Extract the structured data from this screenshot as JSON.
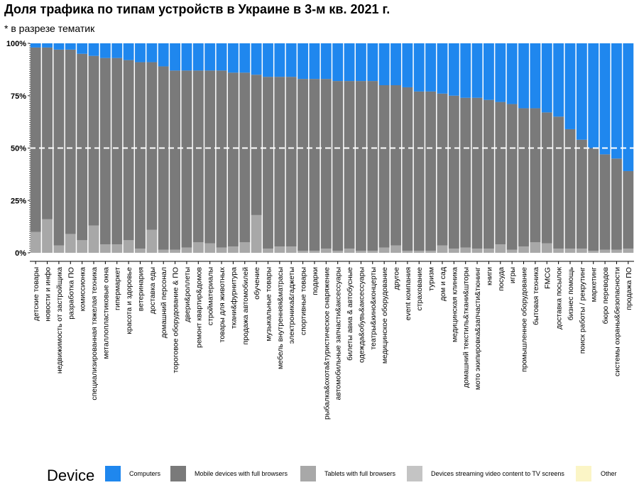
{
  "title": "Доля трафика по типам устройств в Украине в 3-м кв. 2021 г.",
  "subtitle": "* в разрезе тематик",
  "legend": {
    "title": "Device",
    "items": [
      {
        "label": "Computers",
        "color": "#1f87ee"
      },
      {
        "label": "Mobile devices with full browsers",
        "color": "#7a7a7a"
      },
      {
        "label": "Tablets with full browsers",
        "color": "#a8a8a8"
      },
      {
        "label": "Devices streaming video content to TV screens",
        "color": "#c4c4c4"
      },
      {
        "label": "Other",
        "color": "#fbf5c6"
      }
    ]
  },
  "chart_data": {
    "type": "bar",
    "stacked": true,
    "ylim": [
      0,
      1
    ],
    "yticks": [
      "0%",
      "25%",
      "50%",
      "75%",
      "100%"
    ],
    "reference_line": 0.5,
    "categories": [
      "детские товары",
      "новости и инфо",
      "недвижимость от застройщика",
      "разработка ПО",
      "комиссионка",
      "специализированная тяжелая техника",
      "металлопластиковые окна",
      "гипермаркет",
      "красота и здоровье",
      "ветеринария",
      "доставка еды",
      "домашний персонал",
      "тороговое оборудование & ПО",
      "двери&роллеты",
      "ремонт квартир&домов",
      "стройматериалы",
      "товары для животных",
      "ткани&фурнитура",
      "продажа автомобилей",
      "обучение",
      "музыкальные товары",
      "мебель внутренняя&матрасы",
      "электроника&гаджеты",
      "спортивные товары",
      "подарки",
      "рыбалка&охота&туристическое снаряжение",
      "автомобильные запчасти&аксессуары",
      "билеты авиа & автобусные",
      "одежда&обувь&аксессуары",
      "театры&кино&концерты",
      "медицинское оборудование",
      "другое",
      "event компания",
      "страхование",
      "туризм",
      "дом и сад",
      "медицинская клиника",
      "домашний текстиль&ткани&шторы",
      "мото экипировка&запчасти&тюнинг",
      "книги",
      "посуда",
      "игры",
      "промышленное оборудование",
      "бытовая техника",
      "FMCG",
      "доставка посылок",
      "бизнес помощь",
      "поиск работы / рекрутинг",
      "маркетинг",
      "бюро переводов",
      "системы охраны&безопасности",
      "продажа ПО"
    ],
    "series": [
      {
        "name": "Computers",
        "values": [
          0.02,
          0.02,
          0.03,
          0.03,
          0.05,
          0.06,
          0.07,
          0.07,
          0.08,
          0.09,
          0.09,
          0.11,
          0.13,
          0.13,
          0.13,
          0.13,
          0.13,
          0.14,
          0.14,
          0.15,
          0.16,
          0.16,
          0.16,
          0.17,
          0.17,
          0.17,
          0.18,
          0.18,
          0.18,
          0.18,
          0.2,
          0.2,
          0.21,
          0.23,
          0.23,
          0.24,
          0.25,
          0.26,
          0.26,
          0.27,
          0.28,
          0.29,
          0.31,
          0.31,
          0.33,
          0.35,
          0.41,
          0.46,
          0.5,
          0.53,
          0.55,
          0.61
        ]
      },
      {
        "name": "Mobile devices with full browsers",
        "values": [
          0.88,
          0.82,
          0.935,
          0.88,
          0.89,
          0.81,
          0.89,
          0.89,
          0.86,
          0.89,
          0.8,
          0.875,
          0.855,
          0.845,
          0.82,
          0.825,
          0.845,
          0.83,
          0.81,
          0.67,
          0.82,
          0.81,
          0.81,
          0.82,
          0.82,
          0.81,
          0.81,
          0.8,
          0.81,
          0.81,
          0.775,
          0.765,
          0.78,
          0.76,
          0.76,
          0.725,
          0.73,
          0.715,
          0.72,
          0.71,
          0.68,
          0.695,
          0.66,
          0.64,
          0.625,
          0.63,
          0.57,
          0.52,
          0.49,
          0.455,
          0.435,
          0.37
        ]
      },
      {
        "name": "Tablets with full browsers",
        "values": [
          0.1,
          0.16,
          0.035,
          0.09,
          0.06,
          0.13,
          0.04,
          0.04,
          0.06,
          0.02,
          0.11,
          0.015,
          0.015,
          0.025,
          0.05,
          0.045,
          0.025,
          0.03,
          0.05,
          0.18,
          0.02,
          0.03,
          0.03,
          0.01,
          0.01,
          0.02,
          0.01,
          0.02,
          0.01,
          0.01,
          0.025,
          0.035,
          0.01,
          0.01,
          0.01,
          0.035,
          0.02,
          0.025,
          0.02,
          0.02,
          0.04,
          0.015,
          0.03,
          0.05,
          0.045,
          0.02,
          0.02,
          0.02,
          0.01,
          0.015,
          0.015,
          0.02
        ]
      },
      {
        "name": "Devices streaming video content to TV screens",
        "values": [
          0,
          0,
          0,
          0,
          0,
          0,
          0,
          0,
          0,
          0,
          0,
          0,
          0,
          0,
          0,
          0,
          0,
          0,
          0,
          0,
          0,
          0,
          0,
          0,
          0,
          0,
          0,
          0,
          0,
          0,
          0,
          0,
          0,
          0,
          0,
          0,
          0,
          0,
          0,
          0,
          0,
          0,
          0,
          0,
          0,
          0,
          0,
          0,
          0,
          0,
          0,
          0
        ]
      },
      {
        "name": "Other",
        "values": [
          0,
          0,
          0,
          0,
          0,
          0,
          0,
          0,
          0,
          0,
          0,
          0,
          0,
          0,
          0,
          0,
          0,
          0,
          0,
          0,
          0,
          0,
          0,
          0,
          0,
          0,
          0,
          0,
          0,
          0,
          0,
          0,
          0,
          0,
          0,
          0,
          0,
          0,
          0,
          0,
          0,
          0,
          0,
          0,
          0,
          0,
          0,
          0,
          0,
          0,
          0,
          0
        ]
      }
    ]
  }
}
